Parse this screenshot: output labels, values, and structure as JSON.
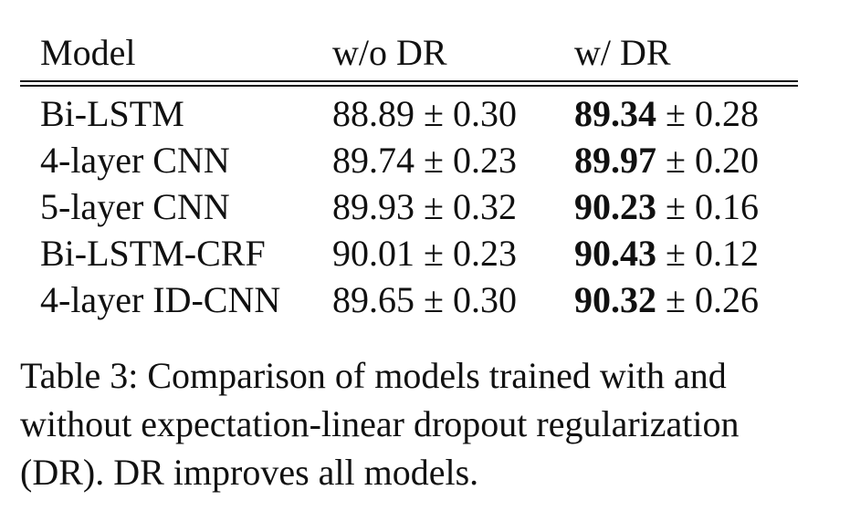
{
  "table": {
    "headers": [
      "Model",
      "w/o DR",
      "w/ DR"
    ],
    "rows": [
      {
        "model": "Bi-LSTM",
        "without_dr": "88.89 ± 0.30",
        "with_dr_best": "89.34",
        "with_dr_rest": " ± 0.28"
      },
      {
        "model": "4-layer CNN",
        "without_dr": "89.74 ± 0.23",
        "with_dr_best": "89.97",
        "with_dr_rest": " ± 0.20"
      },
      {
        "model": "5-layer CNN",
        "without_dr": "89.93 ± 0.32",
        "with_dr_best": "90.23",
        "with_dr_rest": " ± 0.16"
      },
      {
        "model": "Bi-LSTM-CRF",
        "without_dr": "90.01 ± 0.23",
        "with_dr_best": "90.43",
        "with_dr_rest": " ± 0.12"
      },
      {
        "model": "4-layer ID-CNN",
        "without_dr": "89.65 ± 0.30",
        "with_dr_best": "90.32",
        "with_dr_rest": " ± 0.26"
      }
    ]
  },
  "caption": {
    "line1": "Table 3: Comparison of models trained with and",
    "line2": "without expectation-linear dropout regularization",
    "line3": "(DR). DR improves all models."
  }
}
